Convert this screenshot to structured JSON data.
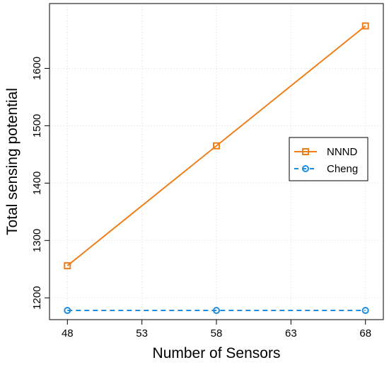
{
  "chart_data": {
    "type": "line",
    "xlabel": "Number of Sensors",
    "ylabel": "Total sensing potential",
    "xlim": [
      46.8,
      69.2
    ],
    "ylim": [
      1162,
      1713
    ],
    "x_ticks": [
      48,
      53,
      58,
      63,
      68
    ],
    "y_ticks": [
      1200,
      1300,
      1400,
      1500,
      1600
    ],
    "grid": true,
    "legend_position": "right",
    "series": [
      {
        "name": "NNND",
        "color": "#f07f1a",
        "marker": "square",
        "line": "solid",
        "x": [
          48,
          58,
          68
        ],
        "y": [
          1256,
          1465,
          1674
        ]
      },
      {
        "name": "Cheng",
        "color": "#1e8ee0",
        "marker": "circle",
        "line": "dashed",
        "x": [
          48,
          58,
          68
        ],
        "y": [
          1178,
          1178,
          1178
        ]
      }
    ]
  }
}
